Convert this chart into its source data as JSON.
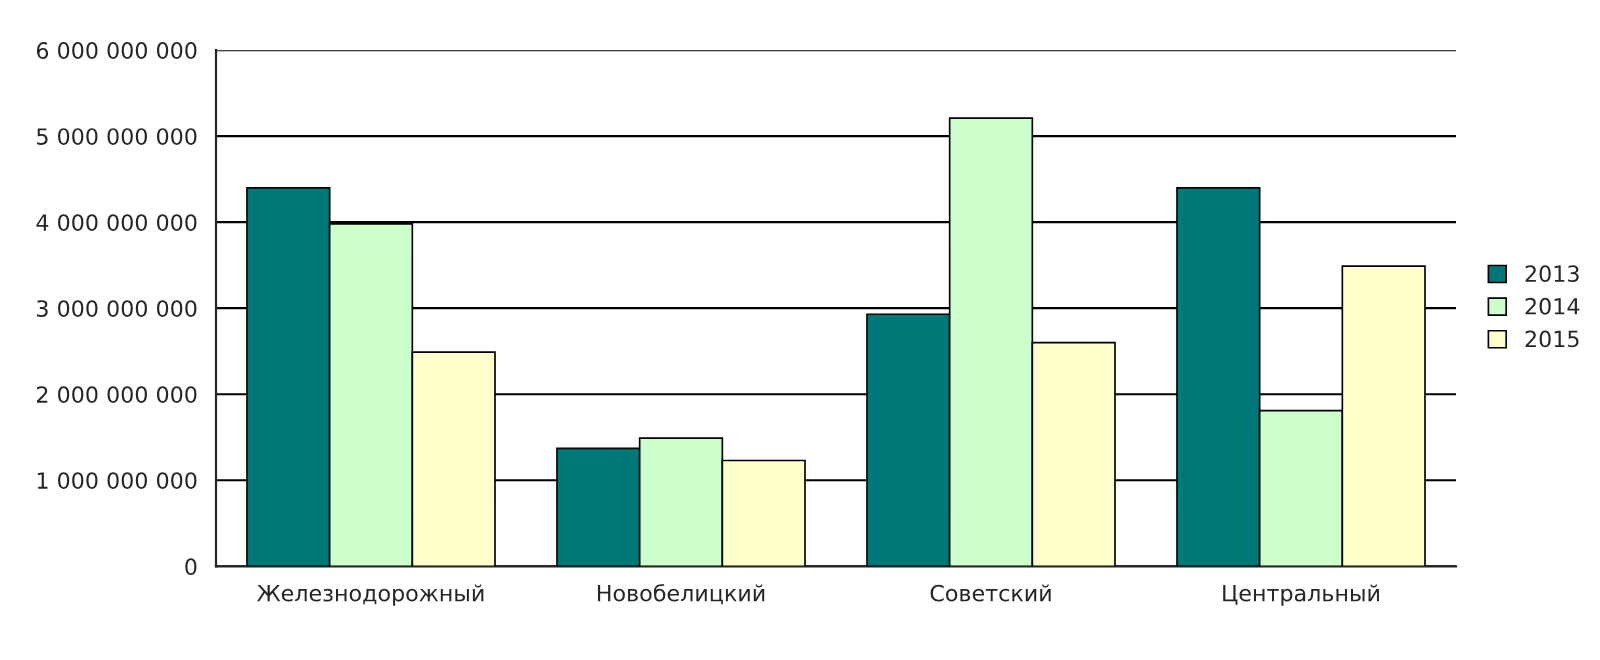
{
  "chart_data": {
    "type": "bar",
    "categories": [
      "Железнодорожный",
      "Новобелицкий",
      "Советский",
      "Центральный"
    ],
    "series": [
      {
        "name": "2013",
        "color": "#007878",
        "values": [
          4400000000,
          1370000000,
          2930000000,
          4400000000
        ]
      },
      {
        "name": "2014",
        "color": "#ccffcc",
        "values": [
          3980000000,
          1490000000,
          5210000000,
          1810000000
        ]
      },
      {
        "name": "2015",
        "color": "#ffffcc",
        "values": [
          2490000000,
          1230000000,
          2600000000,
          3490000000
        ]
      }
    ],
    "ylim": [
      0,
      6000000000
    ],
    "yticks": [
      0,
      {
        "value": 1000000000,
        "label": "1 000 000 000"
      },
      {
        "value": 2000000000,
        "label": "2 000 000 000"
      },
      {
        "value": 3000000000,
        "label": "3 000 000 000"
      },
      {
        "value": 4000000000,
        "label": "4 000 000 000"
      },
      {
        "value": 5000000000,
        "label": "5 000 000 000"
      },
      {
        "value": 6000000000,
        "label": "6 000 000 000"
      }
    ],
    "grid": "y",
    "legend": "right"
  }
}
